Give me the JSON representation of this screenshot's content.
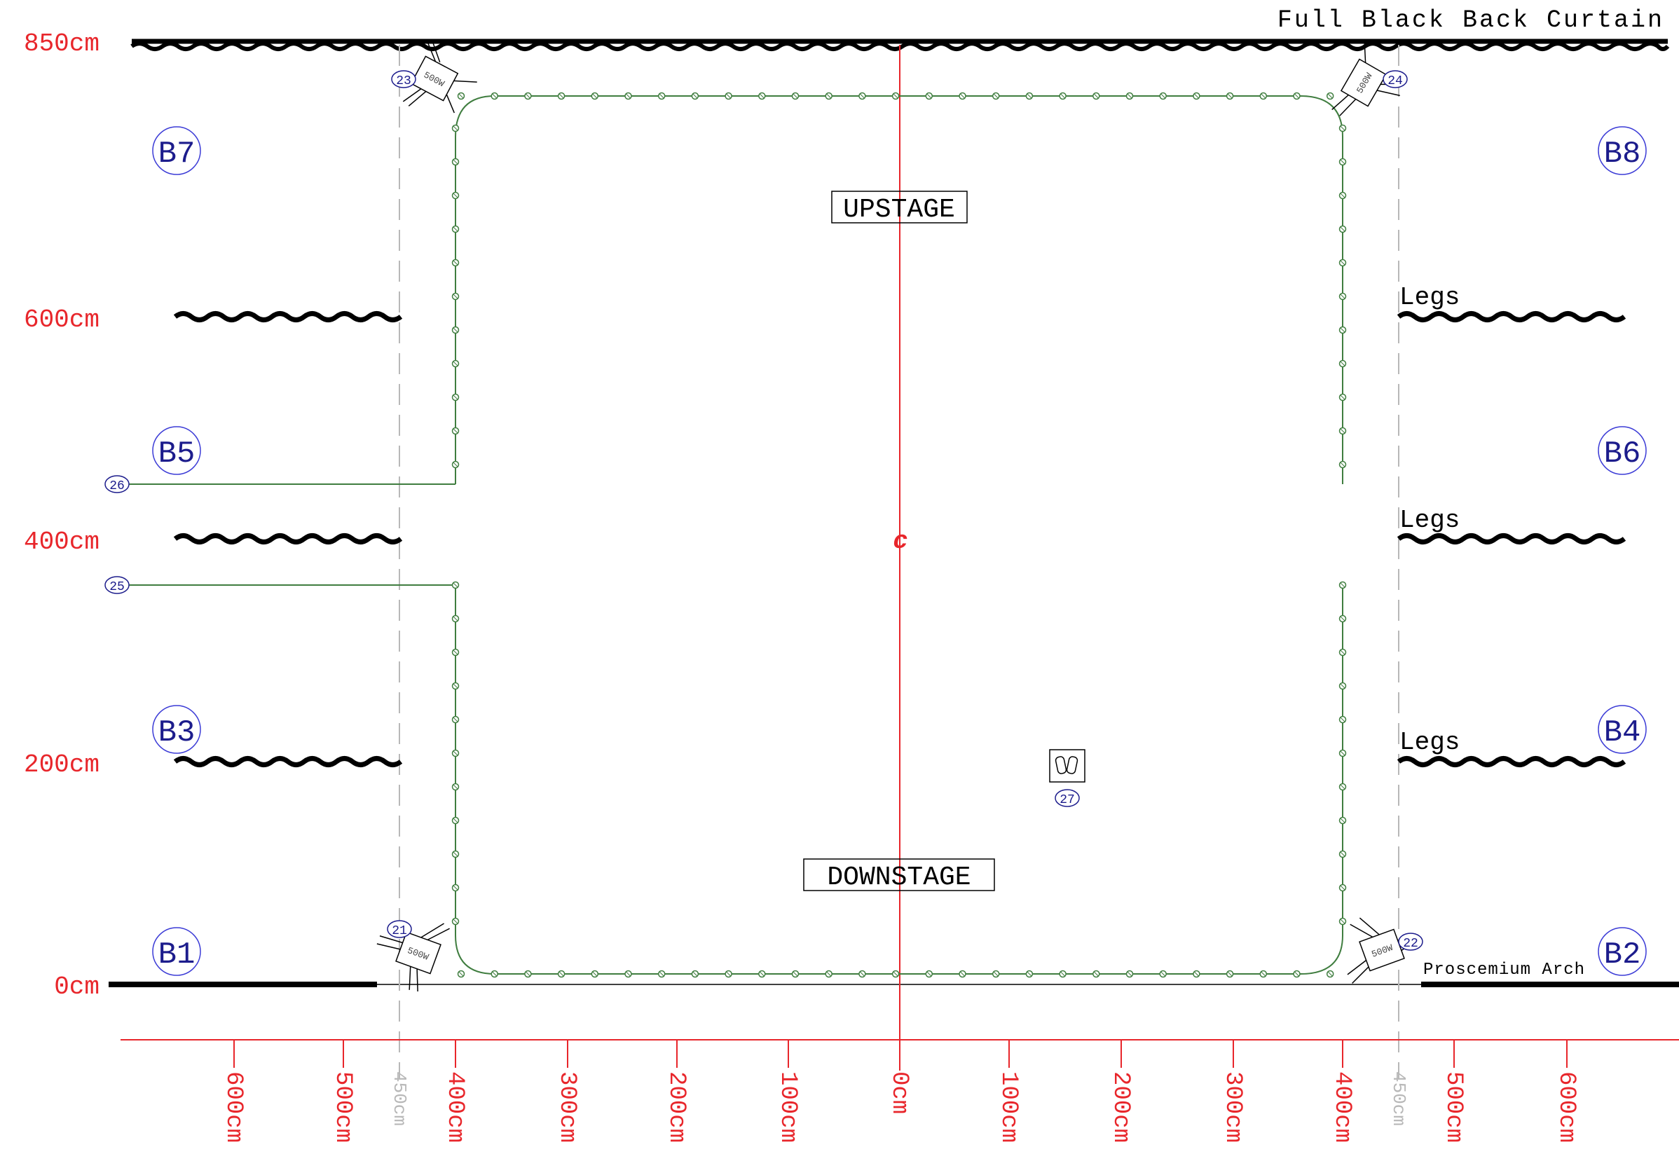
{
  "title": "Full Black Back Curtain",
  "colors": {
    "dimension": "#e8262b",
    "guide": "#b8b8b8",
    "led": "#3f7d3f",
    "bar": "#1c1c8c",
    "curtain": "#000000"
  },
  "y_axis_labels": [
    "850cm",
    "600cm",
    "400cm",
    "200cm",
    "0cm"
  ],
  "x_axis_labels": [
    "600cm",
    "500cm",
    "450cm",
    "400cm",
    "300cm",
    "200cm",
    "100cm",
    "0cm",
    "100cm",
    "200cm",
    "300cm",
    "400cm",
    "450cm",
    "500cm",
    "600cm"
  ],
  "center_mark": "c",
  "stage_labels": {
    "upstage": "UPSTAGE",
    "downstage": "DOWNSTAGE",
    "legs": [
      "Legs",
      "Legs",
      "Legs"
    ],
    "proscenium": "Proscemium Arch"
  },
  "bars": [
    "B7",
    "B8",
    "B5",
    "B6",
    "B3",
    "B4",
    "B1",
    "B2"
  ],
  "fixtures": [
    {
      "id": "23",
      "wattage": "500W",
      "icon": "fresnel-lantern-icon"
    },
    {
      "id": "24",
      "wattage": "500W",
      "icon": "fresnel-lantern-icon"
    },
    {
      "id": "21",
      "wattage": "500W",
      "icon": "fresnel-lantern-icon"
    },
    {
      "id": "22",
      "wattage": "500W",
      "icon": "fresnel-lantern-icon"
    },
    {
      "id": "27",
      "icon": "twin-par-icon"
    }
  ],
  "led_runs": [
    {
      "id": "26"
    },
    {
      "id": "25"
    }
  ]
}
